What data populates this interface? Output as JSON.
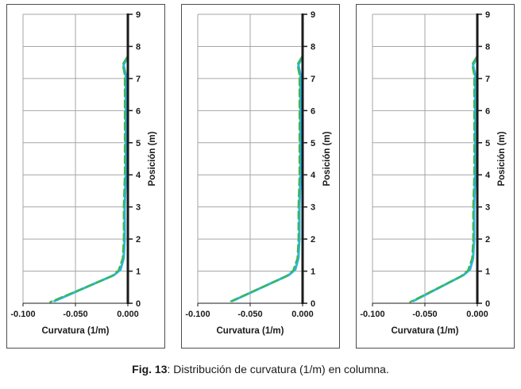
{
  "figure": {
    "caption_label": "Fig. 13",
    "caption_text": ": Distribución de curvatura (1/m) en columna."
  },
  "chart_data": {
    "type": "line",
    "title": "",
    "xlabel": "Curvatura (1/m)",
    "ylabel": "Posición (m)",
    "xlim": [
      -0.1,
      0
    ],
    "ylim": [
      0,
      9
    ],
    "xticks": [
      -0.1,
      -0.05,
      0
    ],
    "xtick_labels": [
      "-0.100",
      "-0.050",
      "0.000"
    ],
    "yticks": [
      0,
      1,
      2,
      3,
      4,
      5,
      6,
      7,
      8,
      9
    ],
    "ytick_labels": [
      "0",
      "1",
      "2",
      "3",
      "4",
      "5",
      "6",
      "7",
      "8",
      "9"
    ],
    "grid": true,
    "legend_position": "none",
    "colors": {
      "grid": "#a6a6a6",
      "axis": "#1a1a1a",
      "series_solid": "#29b7ea",
      "series_dashed": "#3eb54b"
    },
    "panels": [
      {
        "series": [
          {
            "name": "curvatura-solida",
            "color": "#29b7ea",
            "style": "solid",
            "width": 3,
            "points": [
              [
                -0.001,
                7.63
              ],
              [
                -0.004,
                7.42
              ],
              [
                -0.002,
                7.1
              ],
              [
                -0.002,
                6
              ],
              [
                -0.002,
                5
              ],
              [
                -0.002,
                4
              ],
              [
                -0.003,
                3
              ],
              [
                -0.003,
                2
              ],
              [
                -0.004,
                1.4
              ],
              [
                -0.007,
                1.05
              ],
              [
                -0.013,
                0.88
              ],
              [
                -0.07,
                0.07
              ]
            ]
          },
          {
            "name": "curvatura-discontinua",
            "color": "#3eb54b",
            "style": "dashed",
            "width": 2.2,
            "dash": "9 5",
            "points": [
              [
                -0.001,
                7.66
              ],
              [
                -0.005,
                7.44
              ],
              [
                -0.003,
                7.1
              ],
              [
                -0.003,
                6
              ],
              [
                -0.003,
                5
              ],
              [
                -0.003,
                4
              ],
              [
                -0.004,
                3
              ],
              [
                -0.004,
                2
              ],
              [
                -0.005,
                1.4
              ],
              [
                -0.009,
                1.02
              ],
              [
                -0.016,
                0.83
              ],
              [
                -0.074,
                0.04
              ]
            ]
          }
        ]
      },
      {
        "series": [
          {
            "name": "curvatura-solida",
            "color": "#29b7ea",
            "style": "solid",
            "width": 3,
            "points": [
              [
                -0.001,
                7.63
              ],
              [
                -0.004,
                7.42
              ],
              [
                -0.002,
                7.1
              ],
              [
                -0.002,
                6
              ],
              [
                -0.002,
                5
              ],
              [
                -0.002,
                4
              ],
              [
                -0.003,
                3
              ],
              [
                -0.003,
                2
              ],
              [
                -0.004,
                1.4
              ],
              [
                -0.007,
                1.05
              ],
              [
                -0.013,
                0.88
              ],
              [
                -0.067,
                0.07
              ]
            ]
          },
          {
            "name": "curvatura-discontinua",
            "color": "#3eb54b",
            "style": "dashed",
            "width": 2.2,
            "dash": "9 5",
            "points": [
              [
                -0.001,
                7.66
              ],
              [
                -0.005,
                7.44
              ],
              [
                -0.003,
                7.1
              ],
              [
                -0.003,
                6
              ],
              [
                -0.003,
                5
              ],
              [
                -0.003,
                4
              ],
              [
                -0.004,
                3
              ],
              [
                -0.004,
                2
              ],
              [
                -0.005,
                1.4
              ],
              [
                -0.009,
                1.02
              ],
              [
                -0.016,
                0.83
              ],
              [
                -0.07,
                0.04
              ]
            ]
          }
        ]
      },
      {
        "series": [
          {
            "name": "curvatura-solida",
            "color": "#29b7ea",
            "style": "solid",
            "width": 3,
            "points": [
              [
                -0.001,
                7.63
              ],
              [
                -0.004,
                7.42
              ],
              [
                -0.002,
                7.1
              ],
              [
                -0.002,
                6
              ],
              [
                -0.002,
                5
              ],
              [
                -0.002,
                4
              ],
              [
                -0.003,
                3
              ],
              [
                -0.003,
                2
              ],
              [
                -0.004,
                1.4
              ],
              [
                -0.007,
                1.05
              ],
              [
                -0.013,
                0.88
              ],
              [
                -0.061,
                0.07
              ]
            ]
          },
          {
            "name": "curvatura-discontinua",
            "color": "#3eb54b",
            "style": "dashed",
            "width": 2.2,
            "dash": "9 5",
            "points": [
              [
                -0.001,
                7.66
              ],
              [
                -0.005,
                7.44
              ],
              [
                -0.003,
                7.1
              ],
              [
                -0.003,
                6
              ],
              [
                -0.003,
                5
              ],
              [
                -0.003,
                4
              ],
              [
                -0.004,
                3
              ],
              [
                -0.004,
                2
              ],
              [
                -0.005,
                1.4
              ],
              [
                -0.009,
                1.02
              ],
              [
                -0.016,
                0.83
              ],
              [
                -0.064,
                0.04
              ]
            ]
          }
        ]
      }
    ]
  }
}
